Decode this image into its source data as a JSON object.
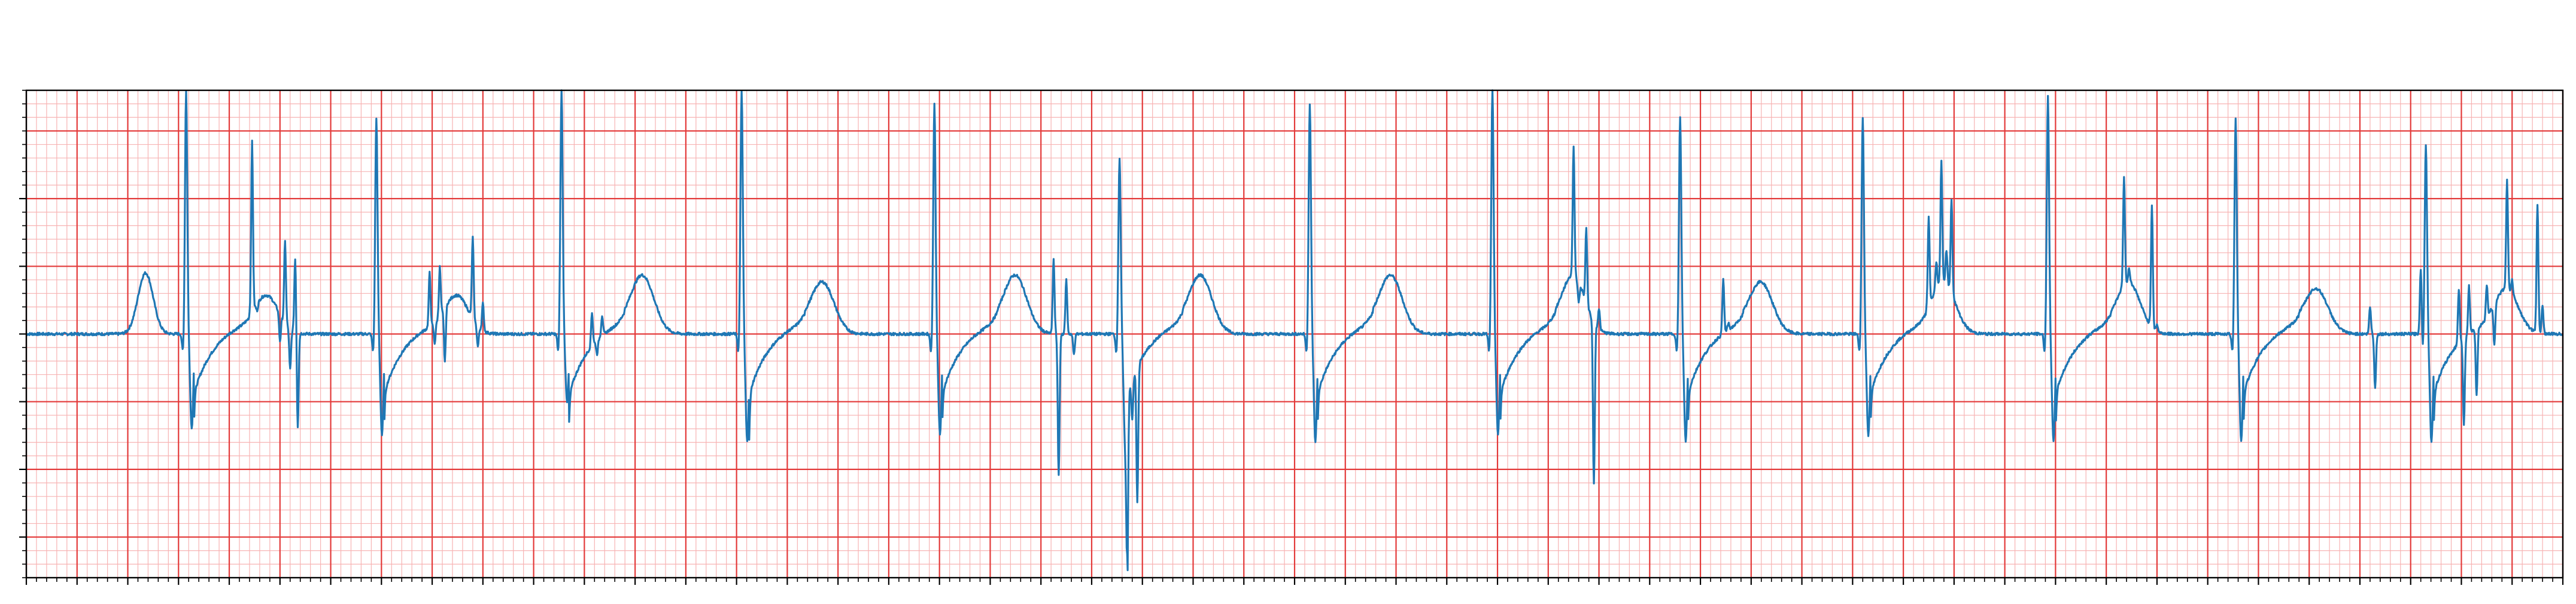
{
  "chart_data": {
    "type": "line",
    "title": "",
    "xlabel": "",
    "ylabel": "",
    "xlim": [
      0,
      10
    ],
    "ylim": [
      -3.6,
      3.6
    ],
    "x_major_step": 0.2,
    "x_minor_step": 0.04,
    "y_major_step": 1.0,
    "y_minor_step": 0.2,
    "grid": true,
    "tick_labels_visible": false,
    "colors": {
      "trace": "#1f77b4",
      "major_grid": "#e33a3a",
      "minor_grid": "#f7b3b3",
      "background": "#ffffff",
      "frame": "#000000"
    },
    "series": [
      {
        "name": "",
        "beats": [
          {
            "r_time": 0.63,
            "r_amp": 3.6,
            "s_amp": -1.4,
            "p_amp": 0.9,
            "t_amp": 0.5,
            "extra_spikes": [
              [
                0.89,
                2.5
              ],
              [
                0.91,
                -0.1
              ],
              [
                1.02,
                1.2
              ],
              [
                1.04,
                -0.6
              ],
              [
                1.06,
                1.1
              ],
              [
                1.07,
                -1.4
              ],
              [
                1.0,
                -0.4
              ]
            ]
          },
          {
            "r_time": 1.38,
            "r_amp": 3.2,
            "s_amp": -1.5,
            "p_amp": 0.0,
            "t_amp": 0.5,
            "extra_spikes": [
              [
                1.59,
                0.8
              ],
              [
                1.61,
                -0.3
              ],
              [
                1.63,
                0.7
              ],
              [
                1.65,
                -0.8
              ],
              [
                1.76,
                1.2
              ],
              [
                1.78,
                -0.3
              ],
              [
                1.8,
                0.4
              ]
            ]
          },
          {
            "r_time": 2.11,
            "r_amp": 3.6,
            "s_amp": -1.0,
            "p_amp": 0.0,
            "t_amp": 0.8,
            "extra_spikes": [
              [
                2.23,
                0.5
              ],
              [
                2.25,
                -0.2
              ],
              [
                2.27,
                0.3
              ]
            ]
          },
          {
            "r_time": 2.82,
            "r_amp": 3.6,
            "s_amp": -1.6,
            "p_amp": 0.0,
            "t_amp": 0.7,
            "extra_spikes": []
          },
          {
            "r_time": 3.58,
            "r_amp": 3.4,
            "s_amp": -1.5,
            "p_amp": 0.0,
            "t_amp": 0.8,
            "extra_spikes": [
              [
                4.05,
                1.1
              ],
              [
                4.07,
                -2.1
              ],
              [
                4.1,
                0.8
              ],
              [
                4.13,
                -0.3
              ]
            ]
          },
          {
            "r_time": 4.31,
            "r_amp": 2.6,
            "s_amp": -1.6,
            "p_amp": 0.0,
            "t_amp": 0.8,
            "extra_spikes": [
              [
                4.34,
                -2.6
              ],
              [
                4.36,
                -0.6
              ],
              [
                4.38,
                -2.0
              ]
            ]
          },
          {
            "r_time": 5.06,
            "r_amp": 3.4,
            "s_amp": -1.6,
            "p_amp": 0.0,
            "t_amp": 0.8,
            "extra_spikes": []
          },
          {
            "r_time": 5.78,
            "r_amp": 3.6,
            "s_amp": -1.5,
            "p_amp": 0.0,
            "t_amp": 0.8,
            "extra_spikes": [
              [
                6.1,
                1.9
              ],
              [
                6.12,
                -0.3
              ],
              [
                6.15,
                1.1
              ],
              [
                6.18,
                -2.4
              ],
              [
                6.2,
                0.3
              ]
            ]
          },
          {
            "r_time": 6.52,
            "r_amp": 3.2,
            "s_amp": -1.6,
            "p_amp": 0.0,
            "t_amp": 0.7,
            "extra_spikes": [
              [
                6.69,
                0.8
              ],
              [
                6.71,
                0.1
              ]
            ]
          },
          {
            "r_time": 7.24,
            "r_amp": 3.2,
            "s_amp": -1.5,
            "p_amp": 0.0,
            "t_amp": 0.7,
            "extra_spikes": [
              [
                7.5,
                1.3
              ],
              [
                7.53,
                0.4
              ],
              [
                7.55,
                1.8
              ],
              [
                7.57,
                0.5
              ],
              [
                7.59,
                1.4
              ]
            ]
          },
          {
            "r_time": 7.97,
            "r_amp": 3.5,
            "s_amp": -1.6,
            "p_amp": 0.0,
            "t_amp": 0.7,
            "extra_spikes": [
              [
                8.27,
                1.6
              ],
              [
                8.29,
                0.2
              ],
              [
                8.38,
                1.8
              ],
              [
                8.4,
                0.1
              ]
            ]
          },
          {
            "r_time": 8.71,
            "r_amp": 3.2,
            "s_amp": -1.6,
            "p_amp": 0.0,
            "t_amp": 0.6,
            "extra_spikes": [
              [
                9.24,
                0.4
              ],
              [
                9.26,
                -0.8
              ],
              [
                9.44,
                1.0
              ],
              [
                9.46,
                -0.2
              ]
            ]
          },
          {
            "r_time": 9.46,
            "r_amp": 3.0,
            "s_amp": -1.6,
            "p_amp": 0.0,
            "t_amp": 0.6,
            "extra_spikes": [
              [
                9.59,
                0.8
              ],
              [
                9.61,
                -1.3
              ],
              [
                9.63,
                0.7
              ],
              [
                9.66,
                -1.0
              ],
              [
                9.7,
                0.5
              ],
              [
                9.73,
                -0.6
              ],
              [
                9.78,
                1.6
              ],
              [
                9.8,
                0.2
              ],
              [
                9.9,
                1.9
              ],
              [
                9.92,
                0.4
              ]
            ]
          }
        ]
      }
    ]
  }
}
